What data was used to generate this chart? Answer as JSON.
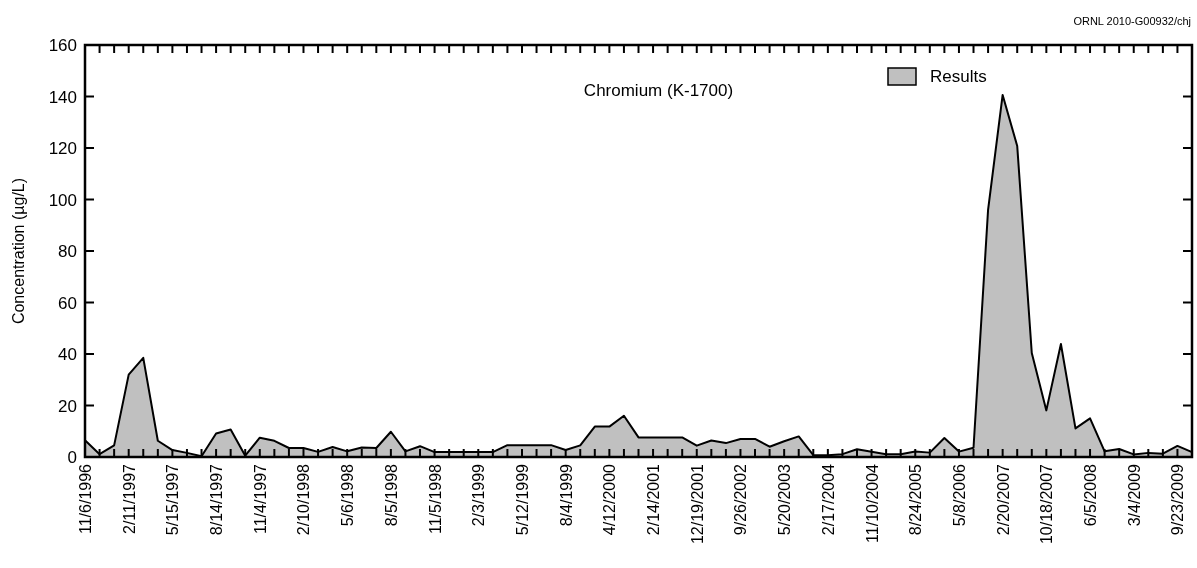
{
  "chart_data": {
    "type": "area",
    "title": "Chromium (K-1700)",
    "ylabel": "Concentration (µg/L)",
    "annotations": [
      "ORNL 2010-G00932/chj"
    ],
    "categories": [
      "11/6/1996",
      null,
      null,
      "2/11/1997",
      null,
      null,
      "5/15/1997",
      null,
      null,
      "8/14/1997",
      null,
      null,
      "11/4/1997",
      null,
      null,
      "2/10/1998",
      null,
      null,
      "5/6/1998",
      null,
      null,
      "8/5/1998",
      null,
      null,
      "11/5/1998",
      null,
      null,
      "2/3/1999",
      null,
      null,
      "5/12/1999",
      null,
      null,
      "8/4/1999",
      null,
      null,
      "4/12/2000",
      null,
      null,
      "2/14/2001",
      null,
      null,
      "12/19/2001",
      null,
      null,
      "9/26/2002",
      null,
      null,
      "5/20/2003",
      null,
      null,
      "2/17/2004",
      null,
      null,
      "11/10/2004",
      null,
      null,
      "8/24/2005",
      null,
      null,
      "5/8/2006",
      null,
      null,
      "2/20/2007",
      null,
      null,
      "10/18/2007",
      null,
      null,
      "6/5/2008",
      null,
      null,
      "3/4/2009",
      null,
      null,
      "9/23/2009",
      null
    ],
    "series": [
      {
        "name": "Results",
        "color": "#c0c0c0",
        "values": [
          6.5,
          1.1,
          4.5,
          32,
          38.5,
          6.3,
          2.7,
          1.6,
          0.3,
          9.1,
          10.7,
          0.5,
          7.5,
          6.3,
          3.5,
          3.5,
          2,
          3.9,
          2.2,
          3.7,
          3.5,
          9.8,
          2.2,
          4.2,
          1.9,
          1.9,
          1.9,
          1.9,
          1.9,
          4.6,
          4.6,
          4.6,
          4.6,
          2.7,
          4.5,
          11.8,
          11.8,
          16,
          7.6,
          7.6,
          7.6,
          7.6,
          4.4,
          6.4,
          5.4,
          7,
          7,
          4,
          6.1,
          8,
          0.7,
          0.7,
          1.1,
          3,
          2,
          1.1,
          1.1,
          2.1,
          1.7,
          7.4,
          2.1,
          3.6,
          96,
          140.6,
          120.8,
          40.4,
          18.1,
          43.9,
          11.1,
          15,
          2.2,
          3.1,
          1,
          1.6,
          1.3,
          4.3,
          1.9
        ]
      }
    ],
    "ylim": [
      0,
      160
    ],
    "yticks": [
      0,
      20,
      40,
      60,
      80,
      100,
      120,
      140,
      160
    ],
    "legend": "top right",
    "grid": false
  }
}
